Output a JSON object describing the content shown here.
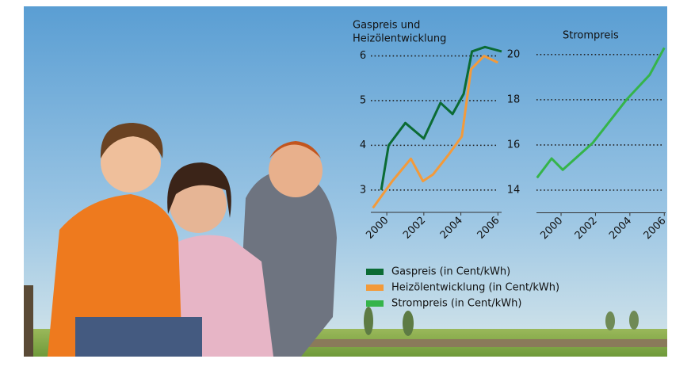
{
  "chart_data": [
    {
      "type": "line",
      "title": [
        "Gaspreis und",
        "Heizölentwicklung"
      ],
      "xlim": [
        1999.14,
        2006.2
      ],
      "xticks": [
        2000,
        2002,
        2004,
        2006
      ],
      "ylim": [
        2.5,
        6.4
      ],
      "yticks": [
        3,
        4,
        5,
        6
      ],
      "grid": true,
      "series": [
        {
          "name": "Gaspreis (in Cent/kWh)",
          "color": "#0b6b34",
          "x": [
            1999.7,
            2000.1,
            2001.0,
            2002.0,
            2002.9,
            2003.55,
            2004.15,
            2004.6,
            2005.3,
            2006.2
          ],
          "values": [
            3.0,
            4.0,
            4.5,
            4.15,
            4.95,
            4.7,
            5.15,
            6.1,
            6.2,
            6.1
          ]
        },
        {
          "name": "Heizölentwicklung (in Cent/kWh)",
          "color": "#f39a3a",
          "x": [
            1999.25,
            2000.3,
            2001.3,
            2001.95,
            2002.5,
            2003.35,
            2004.05,
            2004.55,
            2005.25,
            2006.0
          ],
          "values": [
            2.6,
            3.2,
            3.7,
            3.2,
            3.35,
            3.8,
            4.2,
            5.7,
            6.0,
            5.85
          ]
        }
      ]
    },
    {
      "type": "line",
      "title": [
        "Strompreis"
      ],
      "xlim": [
        1998.57,
        2006.08
      ],
      "xticks": [
        2000,
        2002,
        2004,
        2006
      ],
      "ylim": [
        13,
        20.8
      ],
      "yticks": [
        14,
        16,
        18,
        20
      ],
      "grid": true,
      "series": [
        {
          "name": "Strompreis (in Cent/kWh)",
          "color": "#35b44a",
          "x": [
            1998.6,
            1999.45,
            2000.1,
            2001.85,
            2003.8,
            2005.15,
            2006.0
          ],
          "values": [
            14.55,
            15.4,
            14.9,
            16.1,
            18.0,
            19.1,
            20.3
          ]
        }
      ]
    }
  ]
}
